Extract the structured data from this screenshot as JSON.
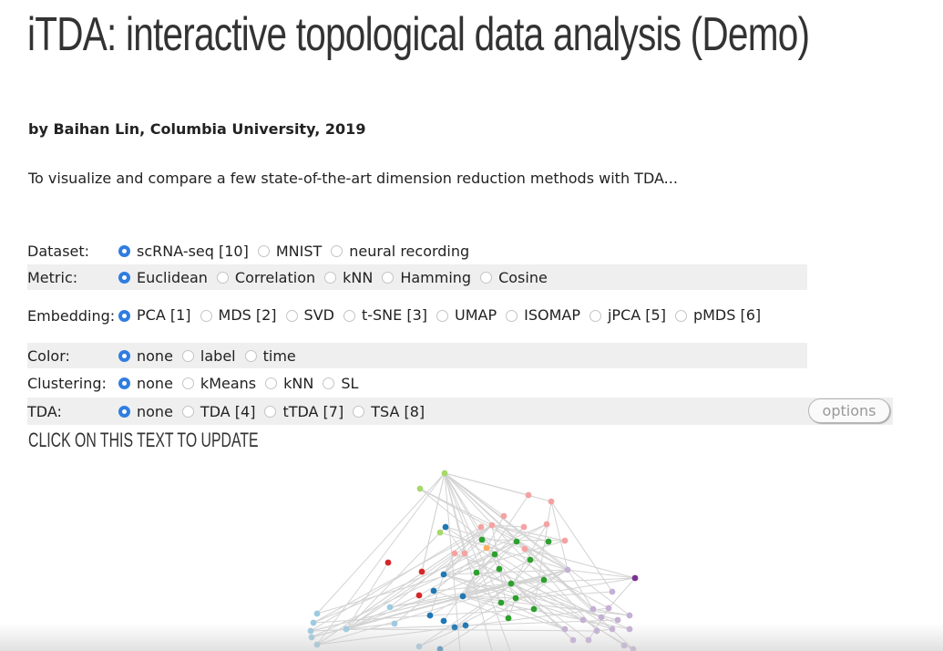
{
  "title": "iTDA: interactive topological data analysis (Demo)",
  "author": "by Baihan Lin, Columbia University, 2019",
  "description": "To visualize and compare a few state-of-the-art dimension reduction methods with TDA...",
  "controls": {
    "dataset": {
      "label": "Dataset:",
      "options": [
        "scRNA-seq [10]",
        "MNIST",
        "neural recording"
      ],
      "selected": "scRNA-seq [10]"
    },
    "metric": {
      "label": "Metric:",
      "options": [
        "Euclidean",
        "Correlation",
        "kNN",
        "Hamming",
        "Cosine"
      ],
      "selected": "Euclidean"
    },
    "embedding": {
      "label": "Embedding:",
      "options": [
        "PCA [1]",
        "MDS [2]",
        "SVD",
        "t-SNE [3]",
        "UMAP",
        "ISOMAP",
        "jPCA [5]",
        "pMDS [6]"
      ],
      "selected": "PCA [1]"
    },
    "color": {
      "label": "Color:",
      "options": [
        "none",
        "label",
        "time"
      ],
      "selected": "none"
    },
    "clustering": {
      "label": "Clustering:",
      "options": [
        "none",
        "kMeans",
        "kNN",
        "SL"
      ],
      "selected": "none"
    },
    "tda": {
      "label": "TDA:",
      "options": [
        "none",
        "TDA [4]",
        "tTDA [7]",
        "TSA [8]"
      ],
      "selected": "none"
    }
  },
  "options_button": "options",
  "update_text": "CLICK ON THIS TEXT TO UPDATE",
  "graph": {
    "colors": {
      "lightgreen": "#a6d96a",
      "salmon": "#f4a2a2",
      "green": "#2ca02c",
      "orange": "#fdae61",
      "blue": "#1f77b4",
      "red": "#d62728",
      "lightblue": "#9ecae1",
      "lavender": "#c5b0d5",
      "purple": "#7b3294",
      "edge": "#d3d3d3"
    }
  }
}
